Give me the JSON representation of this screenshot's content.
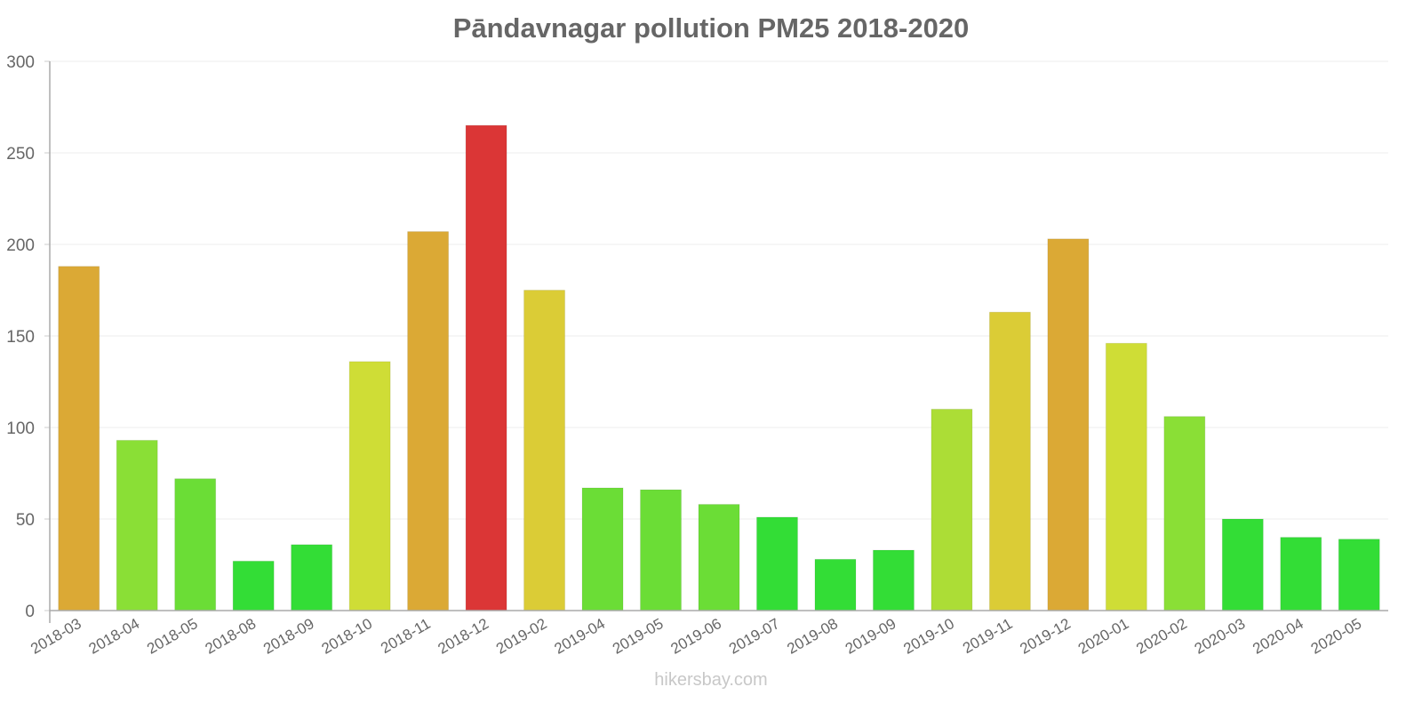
{
  "title": "Pāndavnagar pollution PM25 2018-2020",
  "watermark": "hikersbay.com",
  "chart_data": {
    "type": "bar",
    "title": "Pāndavnagar pollution PM25 2018-2020",
    "xlabel": "",
    "ylabel": "",
    "ylim": [
      0,
      300
    ],
    "yticks": [
      0,
      50,
      100,
      150,
      200,
      250,
      300
    ],
    "grid": true,
    "legend": "none",
    "categories": [
      "2018-03",
      "2018-04",
      "2018-05",
      "2018-08",
      "2018-09",
      "2018-10",
      "2018-11",
      "2018-12",
      "2019-02",
      "2019-04",
      "2019-05",
      "2019-06",
      "2019-07",
      "2019-08",
      "2019-09",
      "2019-10",
      "2019-11",
      "2019-12",
      "2020-01",
      "2020-02",
      "2020-03",
      "2020-04",
      "2020-05"
    ],
    "values": [
      188,
      93,
      72,
      27,
      36,
      136,
      207,
      265,
      175,
      67,
      66,
      58,
      51,
      28,
      33,
      110,
      163,
      203,
      146,
      106,
      50,
      40,
      39
    ],
    "colors": [
      "#dba935",
      "#8adf36",
      "#6bdd36",
      "#33dd36",
      "#33dd36",
      "#cfdd36",
      "#dba935",
      "#db3636",
      "#dbcc36",
      "#6bdd36",
      "#6bdd36",
      "#6bdd36",
      "#33dd36",
      "#33dd36",
      "#33dd36",
      "#acdd36",
      "#dbcc36",
      "#dba935",
      "#cfdd36",
      "#8adf36",
      "#33dd36",
      "#33dd36",
      "#33dd36"
    ]
  }
}
